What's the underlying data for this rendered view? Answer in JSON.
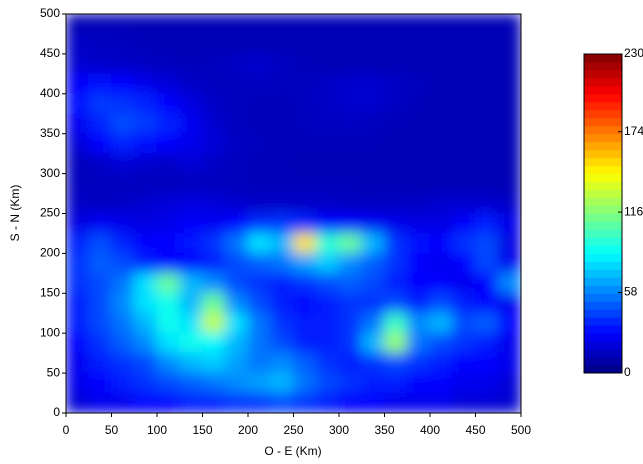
{
  "chart_data": {
    "type": "heatmap",
    "x_label": "O - E (Km)",
    "y_label": "S - N (Km)",
    "xlim": [
      0,
      500
    ],
    "ylim": [
      0,
      500
    ],
    "xticks": [
      0,
      50,
      100,
      150,
      200,
      250,
      300,
      350,
      400,
      450,
      500
    ],
    "yticks": [
      0,
      50,
      100,
      150,
      200,
      250,
      300,
      350,
      400,
      450,
      500
    ],
    "colormap": "jet",
    "zlim": [
      0,
      230
    ],
    "colorbar_ticks": [
      0,
      58,
      116,
      174,
      230
    ],
    "x": [
      12.5,
      37.5,
      62.5,
      87.5,
      112.5,
      137.5,
      162.5,
      187.5,
      212.5,
      237.5,
      262.5,
      287.5,
      312.5,
      337.5,
      362.5,
      387.5,
      412.5,
      437.5,
      462.5,
      487.5
    ],
    "y": [
      487.5,
      462.5,
      437.5,
      412.5,
      387.5,
      362.5,
      337.5,
      312.5,
      287.5,
      262.5,
      237.5,
      212.5,
      187.5,
      162.5,
      137.5,
      112.5,
      87.5,
      62.5,
      37.5,
      12.5
    ],
    "z": [
      [
        12,
        12,
        12,
        12,
        12,
        12,
        12,
        12,
        12,
        12,
        12,
        12,
        12,
        12,
        12,
        12,
        12,
        12,
        12,
        12
      ],
      [
        16,
        15,
        14,
        13,
        12,
        12,
        12,
        12,
        12,
        12,
        12,
        12,
        12,
        12,
        12,
        12,
        12,
        12,
        12,
        12
      ],
      [
        18,
        17,
        16,
        15,
        14,
        13,
        14,
        16,
        18,
        15,
        13,
        12,
        12,
        12,
        12,
        12,
        12,
        12,
        12,
        12
      ],
      [
        28,
        32,
        30,
        24,
        20,
        16,
        14,
        14,
        15,
        14,
        14,
        16,
        18,
        18,
        16,
        14,
        12,
        12,
        12,
        12
      ],
      [
        32,
        42,
        40,
        36,
        30,
        22,
        16,
        14,
        13,
        13,
        14,
        16,
        18,
        18,
        15,
        13,
        12,
        12,
        12,
        12
      ],
      [
        26,
        36,
        46,
        42,
        36,
        26,
        18,
        14,
        13,
        13,
        14,
        15,
        15,
        14,
        13,
        12,
        12,
        12,
        12,
        12
      ],
      [
        20,
        30,
        36,
        32,
        30,
        24,
        20,
        16,
        14,
        13,
        13,
        13,
        13,
        13,
        12,
        12,
        12,
        12,
        12,
        12
      ],
      [
        14,
        16,
        20,
        18,
        16,
        20,
        16,
        14,
        13,
        13,
        12,
        12,
        12,
        12,
        12,
        12,
        12,
        12,
        12,
        12
      ],
      [
        14,
        14,
        14,
        14,
        14,
        14,
        14,
        14,
        13,
        13,
        13,
        13,
        13,
        12,
        12,
        12,
        12,
        12,
        12,
        12
      ],
      [
        16,
        15,
        16,
        18,
        20,
        22,
        20,
        18,
        16,
        16,
        16,
        16,
        15,
        15,
        15,
        16,
        18,
        18,
        18,
        16
      ],
      [
        22,
        26,
        24,
        22,
        24,
        28,
        26,
        30,
        38,
        40,
        36,
        30,
        28,
        26,
        24,
        22,
        22,
        28,
        35,
        24
      ],
      [
        36,
        46,
        36,
        30,
        30,
        34,
        40,
        55,
        80,
        70,
        150,
        95,
        110,
        70,
        40,
        32,
        30,
        40,
        45,
        22
      ],
      [
        40,
        50,
        45,
        35,
        30,
        30,
        35,
        45,
        50,
        55,
        65,
        75,
        60,
        50,
        40,
        30,
        25,
        30,
        45,
        25
      ],
      [
        40,
        45,
        55,
        80,
        110,
        70,
        60,
        45,
        40,
        35,
        40,
        45,
        50,
        45,
        35,
        30,
        30,
        25,
        30,
        60
      ],
      [
        35,
        45,
        60,
        80,
        90,
        70,
        110,
        60,
        45,
        35,
        30,
        35,
        40,
        40,
        45,
        35,
        45,
        35,
        30,
        25
      ],
      [
        35,
        45,
        55,
        70,
        90,
        80,
        130,
        80,
        55,
        40,
        35,
        35,
        40,
        55,
        100,
        60,
        70,
        45,
        50,
        30
      ],
      [
        30,
        40,
        50,
        60,
        80,
        90,
        85,
        70,
        55,
        45,
        35,
        35,
        40,
        70,
        120,
        55,
        45,
        40,
        35,
        25
      ],
      [
        25,
        35,
        40,
        45,
        60,
        70,
        75,
        65,
        55,
        60,
        50,
        40,
        35,
        40,
        45,
        40,
        35,
        30,
        30,
        25
      ],
      [
        25,
        30,
        35,
        40,
        45,
        50,
        55,
        60,
        65,
        70,
        55,
        45,
        40,
        35,
        35,
        30,
        30,
        25,
        25,
        20
      ],
      [
        20,
        25,
        25,
        30,
        30,
        35,
        35,
        40,
        40,
        45,
        40,
        35,
        30,
        30,
        25,
        25,
        25,
        20,
        20,
        18
      ]
    ]
  }
}
